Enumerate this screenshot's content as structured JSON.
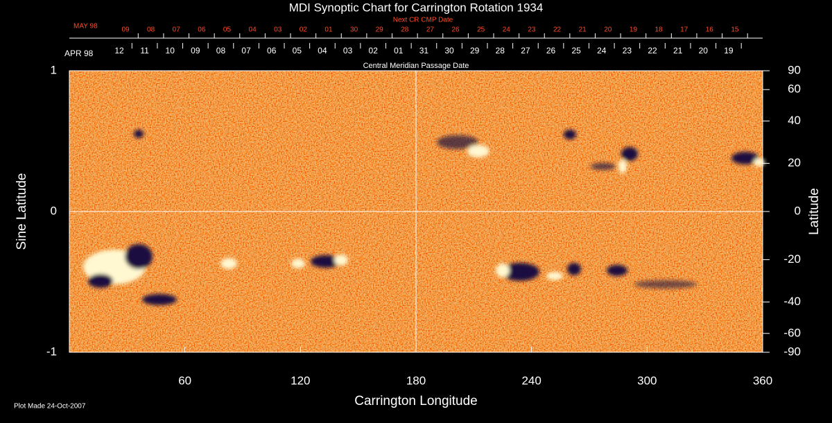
{
  "chart_data": {
    "type": "synoptic-map",
    "title": "MDI Synoptic Chart for Carrington Rotation 1934",
    "xlabel": "Carrington Longitude",
    "ylabel": "Sine Latitude",
    "y2label": "Latitude",
    "xlim": [
      0,
      360
    ],
    "xticks": [
      60,
      120,
      180,
      240,
      300,
      360
    ],
    "ylim": [
      -1,
      1
    ],
    "yticks": [
      -1,
      0,
      1
    ],
    "y2lim": [
      -90,
      90
    ],
    "y2scale": "sine",
    "y2ticks": [
      90,
      60,
      40,
      20,
      0,
      -20,
      -40,
      -60,
      -90
    ],
    "top_axis_label": "Central Meridian Passage Date",
    "cmp_month": "APR 98",
    "cmp_dates": [
      "12",
      "11",
      "10",
      "09",
      "08",
      "07",
      "06",
      "05",
      "04",
      "03",
      "02",
      "01",
      "31",
      "30",
      "29",
      "28",
      "27",
      "26",
      "25",
      "24",
      "23",
      "22",
      "21",
      "20",
      "19"
    ],
    "next_cr_label": "Next CR CMP Date",
    "next_cr_month": "MAY 98",
    "next_cr_dates": [
      "09",
      "08",
      "07",
      "06",
      "05",
      "04",
      "03",
      "02",
      "01",
      "30",
      "29",
      "28",
      "27",
      "26",
      "25",
      "24",
      "23",
      "22",
      "21",
      "20",
      "19",
      "18",
      "17",
      "16",
      "15"
    ],
    "footer": "Plot Made 24-Oct-2007"
  }
}
